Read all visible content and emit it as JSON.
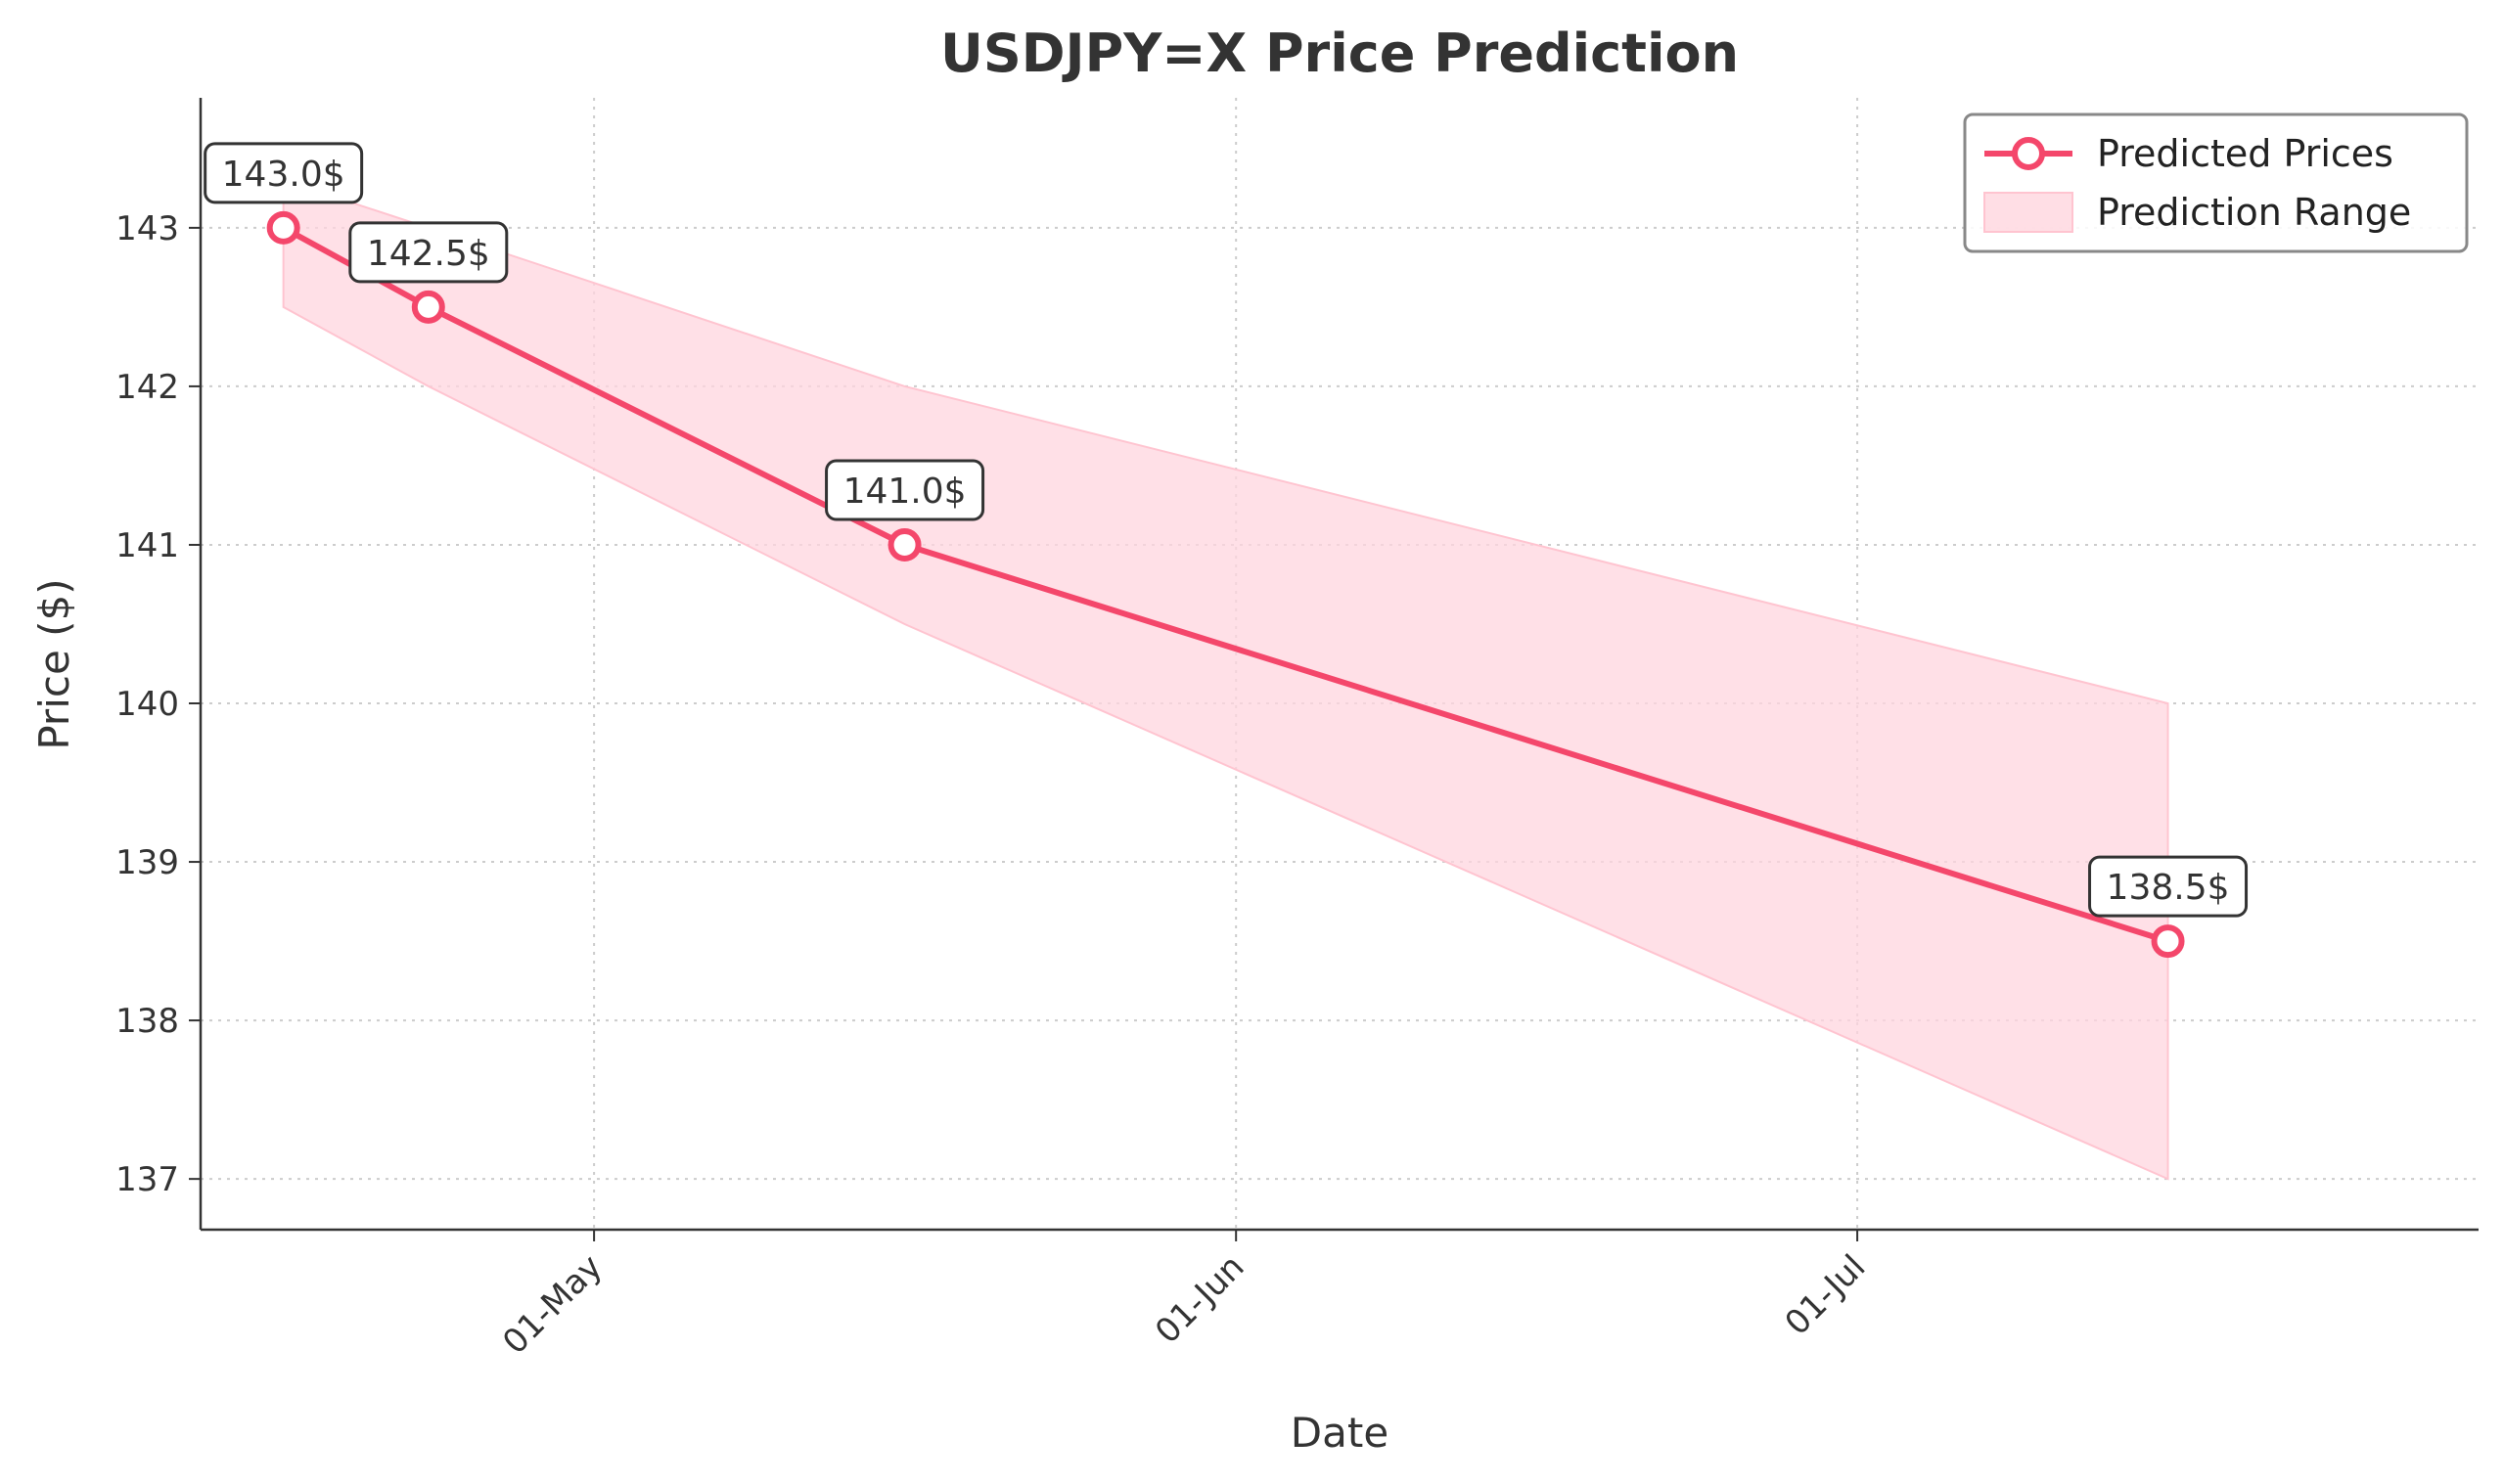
{
  "chart_data": {
    "type": "line",
    "title": "USDJPY=X Price Prediction",
    "xlabel": "Date",
    "ylabel": "Price ($)",
    "x_ticks": [
      {
        "date": "2025-05-01",
        "label": "01-May"
      },
      {
        "date": "2025-06-01",
        "label": "01-Jun"
      },
      {
        "date": "2025-07-01",
        "label": "01-Jul"
      }
    ],
    "y_ticks": [
      137,
      138,
      139,
      140,
      141,
      142,
      143
    ],
    "xlim": [
      "2025-04-12",
      "2025-07-31"
    ],
    "ylim": [
      136.68,
      143.82
    ],
    "grid": true,
    "legend_position": "top-right",
    "series": [
      {
        "name": "Predicted Prices",
        "kind": "line",
        "color": "#F4476B",
        "points": [
          {
            "x": "2025-04-16",
            "y": 143.0
          },
          {
            "x": "2025-04-23",
            "y": 142.5
          },
          {
            "x": "2025-05-16",
            "y": 141.0
          },
          {
            "x": "2025-07-16",
            "y": 138.5
          }
        ]
      },
      {
        "name": "Prediction Range",
        "kind": "band",
        "color": "#FFD6DF",
        "points": [
          {
            "x": "2025-04-16",
            "low": 142.5,
            "high": 143.3
          },
          {
            "x": "2025-04-23",
            "low": 142.0,
            "high": 143.0
          },
          {
            "x": "2025-05-16",
            "low": 140.5,
            "high": 142.0
          },
          {
            "x": "2025-07-16",
            "low": 137.0,
            "high": 140.0
          }
        ]
      }
    ],
    "annotations": [
      {
        "x": "2025-04-16",
        "y": 143.0,
        "label": "143.0$"
      },
      {
        "x": "2025-04-23",
        "y": 142.5,
        "label": "142.5$"
      },
      {
        "x": "2025-05-16",
        "y": 141.0,
        "label": "141.0$"
      },
      {
        "x": "2025-07-16",
        "y": 138.5,
        "label": "138.5$"
      }
    ]
  }
}
